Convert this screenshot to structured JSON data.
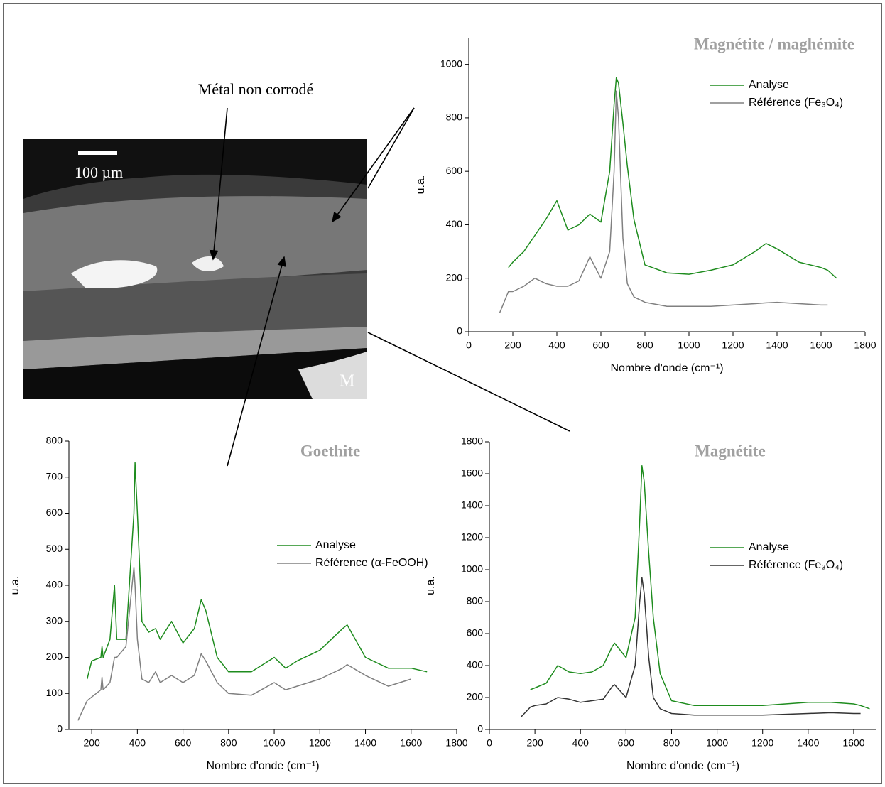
{
  "micrograph": {
    "annotation": "Métal non corrodé",
    "scale": "100 µm",
    "label": "M"
  },
  "chart_data": [
    {
      "type": "line",
      "title": "Magnétite / maghémite",
      "x_label": "Nombre d'onde (cm⁻¹)",
      "y_label": "u.a.",
      "x": [
        140,
        180,
        200,
        250,
        300,
        350,
        400,
        450,
        500,
        550,
        600,
        640,
        660,
        670,
        680,
        700,
        720,
        750,
        800,
        900,
        1000,
        1100,
        1200,
        1300,
        1350,
        1400,
        1500,
        1600,
        1630,
        1670
      ],
      "series": [
        {
          "name": "Analyse",
          "color": "#1e8c1e",
          "values": [
            null,
            240,
            260,
            300,
            360,
            420,
            490,
            380,
            400,
            440,
            410,
            600,
            850,
            950,
            930,
            780,
            620,
            420,
            250,
            220,
            215,
            230,
            250,
            300,
            330,
            310,
            260,
            240,
            230,
            200
          ]
        },
        {
          "name": "Référence (Fe₃O₄)",
          "color": "#808080",
          "values": [
            70,
            150,
            150,
            170,
            200,
            180,
            170,
            170,
            190,
            280,
            200,
            300,
            600,
            900,
            800,
            350,
            180,
            130,
            110,
            95,
            95,
            95,
            100,
            105,
            108,
            110,
            105,
            100,
            100,
            null
          ]
        }
      ],
      "xlim": [
        0,
        1800
      ],
      "xticks": [
        0,
        200,
        400,
        600,
        800,
        1000,
        1200,
        1400,
        1600,
        1800
      ],
      "ylim": [
        0,
        1100
      ],
      "yticks": [
        0,
        200,
        400,
        600,
        800,
        1000
      ]
    },
    {
      "type": "line",
      "title": "Goethite",
      "x_label": "Nombre d'onde (cm⁻¹)",
      "y_label": "u.a.",
      "x": [
        140,
        180,
        200,
        240,
        245,
        250,
        280,
        300,
        310,
        350,
        385,
        390,
        400,
        420,
        450,
        480,
        500,
        550,
        600,
        650,
        680,
        700,
        750,
        800,
        900,
        1000,
        1050,
        1100,
        1200,
        1300,
        1320,
        1400,
        1500,
        1600,
        1670
      ],
      "series": [
        {
          "name": "Analyse",
          "color": "#1e8c1e",
          "values": [
            null,
            140,
            190,
            200,
            230,
            200,
            250,
            400,
            250,
            250,
            600,
            740,
            600,
            300,
            270,
            280,
            250,
            300,
            240,
            280,
            360,
            330,
            200,
            160,
            160,
            200,
            170,
            190,
            220,
            280,
            290,
            200,
            170,
            170,
            160
          ]
        },
        {
          "name": "Référence (α-FeOOH)",
          "color": "#808080",
          "values": [
            25,
            80,
            90,
            110,
            145,
            110,
            130,
            200,
            200,
            230,
            450,
            400,
            250,
            140,
            130,
            160,
            130,
            150,
            130,
            150,
            210,
            190,
            130,
            100,
            95,
            130,
            110,
            120,
            140,
            170,
            180,
            150,
            120,
            140,
            null
          ]
        }
      ],
      "xlim": [
        100,
        1800
      ],
      "xticks": [
        200,
        400,
        600,
        800,
        1000,
        1200,
        1400,
        1600,
        1800
      ],
      "ylim": [
        0,
        800
      ],
      "yticks": [
        0,
        100,
        200,
        300,
        400,
        500,
        600,
        700,
        800
      ]
    },
    {
      "type": "line",
      "title": "Magnétite",
      "x_label": "Nombre d'onde (cm⁻¹)",
      "y_label": "u.a.",
      "x": [
        140,
        180,
        200,
        250,
        300,
        350,
        400,
        450,
        500,
        540,
        550,
        600,
        640,
        660,
        670,
        680,
        700,
        720,
        750,
        800,
        900,
        1000,
        1200,
        1400,
        1500,
        1600,
        1630,
        1670
      ],
      "series": [
        {
          "name": "Analyse",
          "color": "#1e8c1e",
          "values": [
            null,
            250,
            260,
            290,
            400,
            360,
            350,
            360,
            400,
            520,
            540,
            450,
            700,
            1300,
            1650,
            1550,
            1100,
            700,
            350,
            180,
            150,
            150,
            150,
            170,
            170,
            160,
            150,
            130
          ]
        },
        {
          "name": "Référence (Fe₃O₄)",
          "color": "#333333",
          "values": [
            80,
            140,
            150,
            160,
            200,
            190,
            170,
            180,
            190,
            270,
            280,
            200,
            400,
            800,
            950,
            850,
            450,
            200,
            130,
            100,
            90,
            90,
            90,
            100,
            105,
            100,
            100,
            null
          ]
        }
      ],
      "xlim": [
        0,
        1700
      ],
      "xticks": [
        0,
        200,
        400,
        600,
        800,
        1000,
        1200,
        1400,
        1600
      ],
      "ylim": [
        0,
        1800
      ],
      "yticks": [
        0,
        200,
        400,
        600,
        800,
        1000,
        1200,
        1400,
        1600,
        1800
      ]
    }
  ]
}
